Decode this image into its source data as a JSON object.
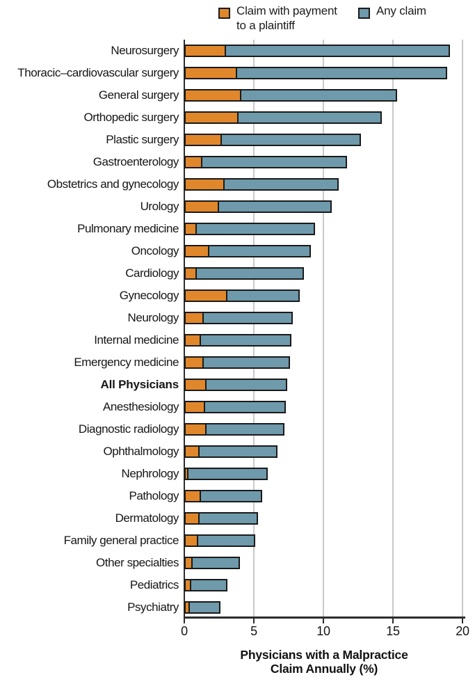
{
  "legend": {
    "items": [
      {
        "line1": "Claim with payment",
        "line2": "to a plaintiff",
        "color": "#E1872B",
        "swatch_icon": "orange-square-swatch"
      },
      {
        "line1": "Any claim",
        "line2": "",
        "color": "#6E9AAB",
        "swatch_icon": "blue-square-swatch"
      }
    ]
  },
  "axis": {
    "title1": "Physicians with a Malpractice",
    "title2": "Claim Annually (%)",
    "tick_labels": [
      "0",
      "5",
      "10",
      "15",
      "20"
    ]
  },
  "chart_data": {
    "type": "bar",
    "orientation": "horizontal",
    "stacked": true,
    "title": "",
    "xlabel": "Physicians with a Malpractice Claim Annually (%)",
    "ylabel": "",
    "xlim": [
      0,
      20
    ],
    "x_ticks": [
      0,
      5,
      10,
      15,
      20
    ],
    "grid": "vertical-gridlines-at-5-10-15-20",
    "legend_position": "top",
    "emphasized_category": "All Physicians",
    "categories": [
      "Neurosurgery",
      "Thoracic–cardiovascular surgery",
      "General surgery",
      "Orthopedic surgery",
      "Plastic surgery",
      "Gastroenterology",
      "Obstetrics and gynecology",
      "Urology",
      "Pulmonary medicine",
      "Oncology",
      "Cardiology",
      "Gynecology",
      "Neurology",
      "Internal medicine",
      "Emergency medicine",
      "All Physicians",
      "Anesthesiology",
      "Diagnostic radiology",
      "Ophthalmology",
      "Nephrology",
      "Pathology",
      "Dermatology",
      "Family general practice",
      "Other specialties",
      "Pediatrics",
      "Psychiatry"
    ],
    "series": [
      {
        "name": "Claim with payment to a plaintiff",
        "color": "#E1872B",
        "values": [
          3.0,
          3.8,
          4.1,
          3.9,
          2.7,
          1.3,
          2.9,
          2.5,
          0.9,
          1.8,
          0.9,
          3.1,
          1.4,
          1.2,
          1.4,
          1.6,
          1.5,
          1.6,
          1.1,
          0.3,
          1.2,
          1.1,
          1.0,
          0.6,
          0.5,
          0.4
        ]
      },
      {
        "name": "Any claim",
        "color": "#6E9AAB",
        "values": [
          19.1,
          18.9,
          15.3,
          14.2,
          12.7,
          11.7,
          11.1,
          10.6,
          9.4,
          9.1,
          8.6,
          8.3,
          7.8,
          7.7,
          7.6,
          7.4,
          7.3,
          7.2,
          6.7,
          6.0,
          5.6,
          5.3,
          5.1,
          4.0,
          3.1,
          2.6
        ]
      }
    ]
  },
  "colors": {
    "payment_bar": "#E1872B",
    "any_claim_bar": "#6E9AAB",
    "bar_border": "#1a1a1a",
    "gridline": "#c9c9c9",
    "axis": "#2d2d2d",
    "text": "#1c1c1c"
  }
}
